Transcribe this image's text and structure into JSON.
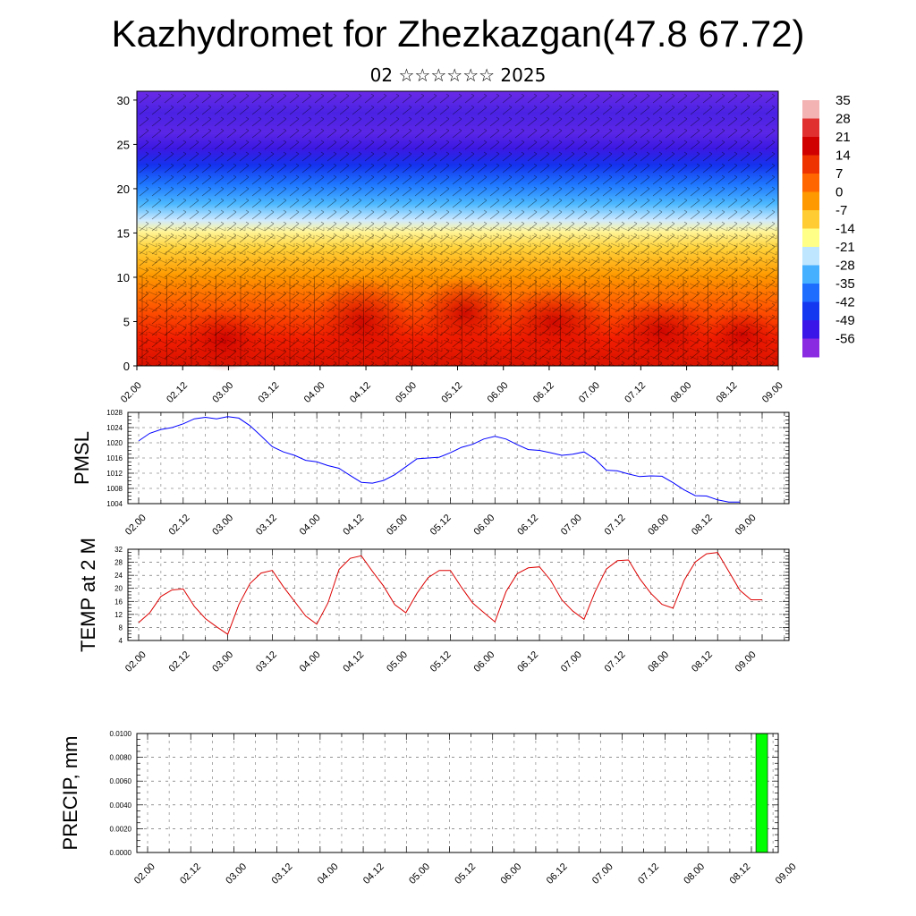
{
  "title": "Kazhydromet for Zhezkazgan(47.8 67.72)",
  "subtitle": "02 ☆☆☆☆☆☆ 2025",
  "chart_data": [
    {
      "type": "heatmap",
      "name": "vertical cross-section",
      "yticks": [
        "0",
        "5",
        "10",
        "15",
        "20",
        "25",
        "30"
      ],
      "ylim": [
        0,
        31
      ],
      "xticks": [
        "02.00",
        "02.12",
        "03.00",
        "03.12",
        "04.00",
        "04.12",
        "05.00",
        "05.12",
        "06.00",
        "06.12",
        "07.00",
        "07.12",
        "08.00",
        "08.12",
        "09.00"
      ],
      "colorbar_labels": [
        "35",
        "28",
        "21",
        "14",
        "7",
        "0",
        "-7",
        "-14",
        "-21",
        "-28",
        "-35",
        "-42",
        "-49",
        "-56"
      ],
      "colorbar_colors": [
        "#f3b3b3",
        "#e03030",
        "#d10000",
        "#ee3300",
        "#ff6600",
        "#ff9900",
        "#ffcc33",
        "#ffff88",
        "#bfe6ff",
        "#44b0ff",
        "#1e6dff",
        "#1438f0",
        "#3a16e8",
        "#8a2be2"
      ],
      "overlay": "wind barbs"
    },
    {
      "type": "line",
      "ylabel": "PMSL",
      "ylim": [
        1004,
        1028
      ],
      "yticks": [
        "1004",
        "1008",
        "1012",
        "1016",
        "1020",
        "1024",
        "1028"
      ],
      "xticks": [
        "02.00",
        "02.12",
        "03.00",
        "03.12",
        "04.00",
        "04.12",
        "05.00",
        "05.12",
        "06.00",
        "06.12",
        "07.00",
        "07.12",
        "08.00",
        "08.12",
        "09.00"
      ],
      "line_color": "#0000ff",
      "x": [
        0,
        3,
        6,
        9,
        12,
        15,
        18,
        21,
        24,
        27,
        30,
        33,
        36,
        39,
        42,
        45,
        48,
        51,
        54,
        57,
        60,
        63,
        66,
        69,
        72,
        75,
        78,
        81,
        84,
        87,
        90,
        93,
        96,
        99,
        102,
        105,
        108,
        111,
        114,
        117,
        120,
        123,
        126,
        129,
        132,
        135,
        138,
        141,
        144,
        147,
        150,
        153,
        156,
        159,
        162,
        165,
        168
      ],
      "values": [
        1020.5,
        1022.5,
        1023.5,
        1024,
        1025,
        1026.3,
        1026.7,
        1026.3,
        1026.9,
        1026.5,
        1024.5,
        1021.8,
        1019,
        1017.6,
        1016.7,
        1015.4,
        1015,
        1014,
        1013.3,
        1011.4,
        1009.6,
        1009.4,
        1010.1,
        1011.6,
        1013.7,
        1015.8,
        1016,
        1016.2,
        1017.4,
        1018.8,
        1019.6,
        1021,
        1021.7,
        1021,
        1019.5,
        1018.2,
        1018,
        1017.4,
        1016.7,
        1017,
        1017.6,
        1015.7,
        1012.8,
        1012.6,
        1011.8,
        1011.1,
        1011.3,
        1011.2,
        1009.5,
        1007.6,
        1006.1,
        1006,
        1005,
        1004.4,
        1004.4,
        null,
        null
      ]
    },
    {
      "type": "line",
      "ylabel": "TEMP at 2 M",
      "ylim": [
        4,
        32
      ],
      "yticks": [
        "4",
        "8",
        "12",
        "16",
        "20",
        "24",
        "28",
        "32"
      ],
      "xticks": [
        "02.00",
        "02.12",
        "03.00",
        "03.12",
        "04.00",
        "04.12",
        "05.00",
        "05.12",
        "06.00",
        "06.12",
        "07.00",
        "07.12",
        "08.00",
        "08.12",
        "09.00"
      ],
      "line_color": "#dd0000",
      "x": [
        0,
        3,
        6,
        9,
        12,
        15,
        18,
        21,
        24,
        27,
        30,
        33,
        36,
        39,
        42,
        45,
        48,
        51,
        54,
        57,
        60,
        63,
        66,
        69,
        72,
        75,
        78,
        81,
        84,
        87,
        90,
        93,
        96,
        99,
        102,
        105,
        108,
        111,
        114,
        117,
        120,
        123,
        126,
        129,
        132,
        135,
        138,
        141,
        144,
        147,
        150,
        153,
        156,
        159,
        162,
        165,
        168
      ],
      "values": [
        9.5,
        12.5,
        17.5,
        19.5,
        19.8,
        14.5,
        10.7,
        8.2,
        5.9,
        15,
        21.5,
        24.7,
        25.5,
        20.5,
        16,
        11.5,
        9,
        15.5,
        25.8,
        29.2,
        30,
        25.2,
        20.7,
        15,
        12.5,
        18.5,
        23.3,
        25.5,
        25.5,
        20.3,
        15.5,
        12.6,
        9.7,
        19,
        24.5,
        26.3,
        26.6,
        22.5,
        16.5,
        13,
        10.5,
        19,
        25.9,
        28.5,
        28.7,
        23,
        18.5,
        15.1,
        13.9,
        22.5,
        28.1,
        30.6,
        31,
        25.2,
        19.4,
        16.5,
        16.5
      ]
    },
    {
      "type": "bar",
      "ylabel": "PRECIP, mm",
      "ylim": [
        0,
        0.01
      ],
      "yticks": [
        "0.0000",
        "0.0020",
        "0.0040",
        "0.0060",
        "0.0080",
        "0.0100"
      ],
      "xticks": [
        "02.00",
        "02.12",
        "03.00",
        "03.12",
        "04.00",
        "04.12",
        "05.00",
        "05.12",
        "06.00",
        "06.12",
        "07.00",
        "07.12",
        "08.00",
        "08.12",
        "09.00"
      ],
      "bar_color": "#00ff00",
      "bars": [
        {
          "x": 171,
          "value": 0.01
        }
      ]
    }
  ]
}
